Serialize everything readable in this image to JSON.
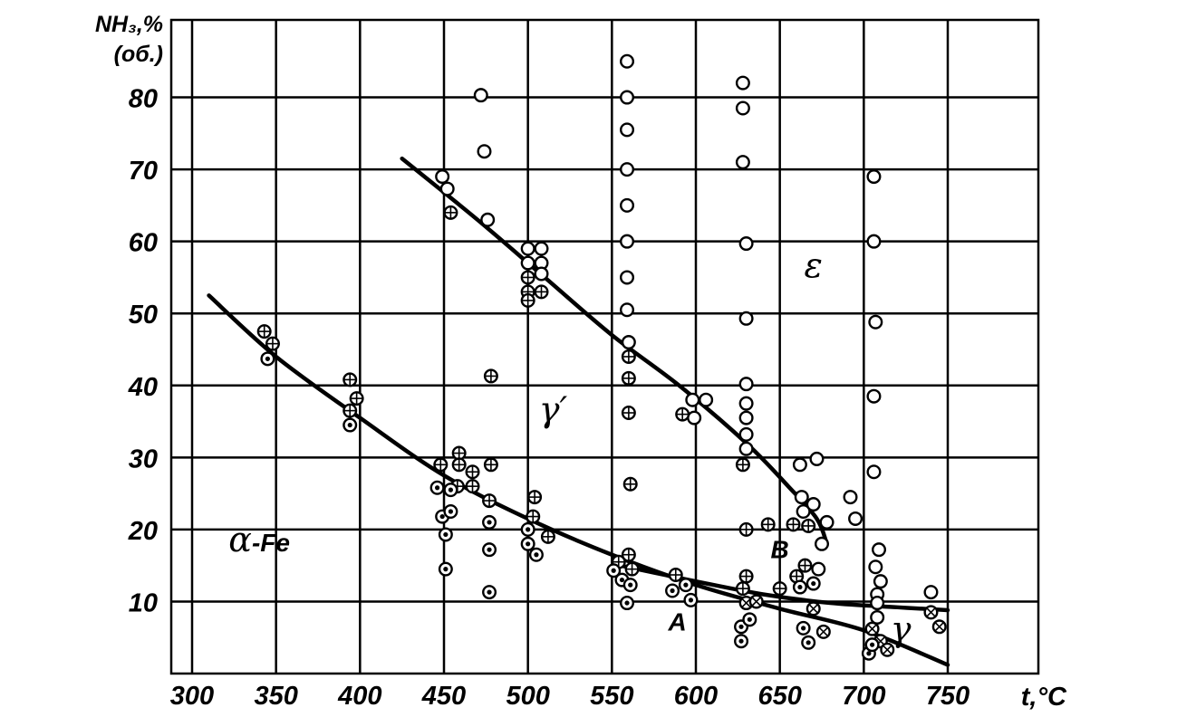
{
  "chart_data": {
    "type": "scatter",
    "title": "",
    "ylabel_lines": [
      "NH₃,%",
      "(об.)"
    ],
    "xlabel": "t,°C",
    "xlim": [
      300,
      750
    ],
    "ylim": [
      0,
      90
    ],
    "x_ticks": [
      300,
      350,
      400,
      450,
      500,
      550,
      600,
      650,
      700,
      750
    ],
    "x_tick_labels": [
      "300",
      "350",
      "400",
      "450",
      "500",
      "550",
      "600",
      "650",
      "700",
      "750"
    ],
    "y_ticks": [
      10,
      20,
      30,
      40,
      50,
      60,
      70,
      80
    ],
    "y_tick_labels": [
      "10",
      "20",
      "30",
      "40",
      "50",
      "60",
      "70",
      "80"
    ],
    "grid": true,
    "region_labels": [
      {
        "text": "α-Fe",
        "x": 340,
        "y": 17
      },
      {
        "text": "γ′",
        "x": 515,
        "y": 35
      },
      {
        "text": "ε",
        "x": 670,
        "y": 55
      },
      {
        "text": "γ",
        "x": 722,
        "y": 4.5
      },
      {
        "text": "A",
        "x": 589,
        "y": 6
      },
      {
        "text": "B",
        "x": 650,
        "y": 16
      }
    ],
    "curves": [
      {
        "points": [
          [
            310,
            52.5
          ],
          [
            350,
            44
          ],
          [
            400,
            35.5
          ],
          [
            450,
            27.5
          ],
          [
            500,
            21.5
          ],
          [
            550,
            16.5
          ],
          [
            600,
            12.3
          ],
          [
            650,
            9
          ],
          [
            700,
            6
          ],
          [
            750,
            1.2
          ]
        ]
      },
      {
        "points": [
          [
            425,
            71.5
          ],
          [
            470,
            63
          ],
          [
            510,
            55
          ],
          [
            550,
            47
          ],
          [
            590,
            40
          ],
          [
            630,
            32
          ],
          [
            655,
            26
          ],
          [
            672,
            21.5
          ],
          [
            678,
            18
          ]
        ]
      },
      {
        "points": [
          [
            555,
            15
          ],
          [
            600,
            12.8
          ],
          [
            640,
            11
          ],
          [
            680,
            9.8
          ],
          [
            720,
            9.2
          ],
          [
            750,
            8.8
          ]
        ]
      }
    ],
    "series": [
      {
        "marker": "open-circle",
        "points": [
          [
            472,
            80.3
          ],
          [
            474,
            72.5
          ],
          [
            476,
            63
          ],
          [
            449,
            69
          ],
          [
            452,
            67.3
          ],
          [
            500,
            59
          ],
          [
            500,
            57
          ],
          [
            508,
            59
          ],
          [
            508,
            57
          ],
          [
            508,
            55.5
          ],
          [
            559,
            85
          ],
          [
            559,
            80
          ],
          [
            559,
            75.5
          ],
          [
            559,
            70
          ],
          [
            559,
            65
          ],
          [
            559,
            60
          ],
          [
            559,
            55
          ],
          [
            559,
            50.5
          ],
          [
            560,
            46
          ],
          [
            598,
            38
          ],
          [
            599,
            35.5
          ],
          [
            606,
            38
          ],
          [
            628,
            82
          ],
          [
            628,
            78.5
          ],
          [
            628,
            71
          ],
          [
            630,
            59.7
          ],
          [
            630,
            49.3
          ],
          [
            630,
            40.2
          ],
          [
            630,
            37.5
          ],
          [
            630,
            35.5
          ],
          [
            630,
            33.2
          ],
          [
            630,
            31.2
          ],
          [
            662,
            29
          ],
          [
            663,
            24.5
          ],
          [
            664,
            22.5
          ],
          [
            670,
            23.5
          ],
          [
            672,
            29.8
          ],
          [
            673,
            14.5
          ],
          [
            675,
            18
          ],
          [
            678,
            21
          ],
          [
            692,
            24.5
          ],
          [
            695,
            21.5
          ],
          [
            706,
            69
          ],
          [
            706,
            60
          ],
          [
            707,
            48.8
          ],
          [
            706,
            38.5
          ],
          [
            706,
            28
          ],
          [
            709,
            17.2
          ],
          [
            707,
            14.8
          ],
          [
            710,
            12.8
          ],
          [
            708,
            11
          ],
          [
            708,
            9.8
          ],
          [
            708,
            7.8
          ],
          [
            740,
            11.3
          ]
        ]
      },
      {
        "marker": "crossed-circle",
        "points": [
          [
            343,
            47.5
          ],
          [
            348,
            45.8
          ],
          [
            394,
            40.8
          ],
          [
            394,
            36.5
          ],
          [
            398,
            38.2
          ],
          [
            448,
            29
          ],
          [
            459,
            30.6
          ],
          [
            459,
            29
          ],
          [
            458,
            26
          ],
          [
            467,
            28
          ],
          [
            467,
            26
          ],
          [
            478,
            29
          ],
          [
            477,
            24
          ],
          [
            454,
            64
          ],
          [
            478,
            41.3
          ],
          [
            500,
            55
          ],
          [
            500,
            53
          ],
          [
            500,
            51.8
          ],
          [
            508,
            53
          ],
          [
            504,
            24.5
          ],
          [
            503,
            21.8
          ],
          [
            512,
            19
          ],
          [
            554,
            15.5
          ],
          [
            560,
            16.5
          ],
          [
            562,
            14.5
          ],
          [
            560,
            44
          ],
          [
            560,
            41
          ],
          [
            560,
            36.2
          ],
          [
            561,
            26.3
          ],
          [
            588,
            13.7
          ],
          [
            592,
            36
          ],
          [
            628,
            29
          ],
          [
            630,
            20
          ],
          [
            630,
            13.5
          ],
          [
            628,
            11.8
          ],
          [
            643,
            20.7
          ],
          [
            650,
            11.8
          ],
          [
            660,
            13.5
          ],
          [
            658,
            20.7
          ],
          [
            665,
            15
          ],
          [
            667,
            20.5
          ]
        ]
      },
      {
        "marker": "x-circle",
        "points": [
          [
            630,
            9.8
          ],
          [
            636,
            10
          ],
          [
            670,
            9
          ],
          [
            676,
            5.8
          ],
          [
            705,
            6.2
          ],
          [
            710,
            4.5
          ],
          [
            714,
            3.3
          ],
          [
            740,
            8.5
          ],
          [
            745,
            6.5
          ]
        ]
      },
      {
        "marker": "dot-circle",
        "points": [
          [
            345,
            43.7
          ],
          [
            394,
            34.5
          ],
          [
            446,
            25.8
          ],
          [
            449,
            21.8
          ],
          [
            451,
            19.3
          ],
          [
            451,
            14.5
          ],
          [
            454,
            22.5
          ],
          [
            454,
            25.5
          ],
          [
            477,
            21
          ],
          [
            477,
            17.2
          ],
          [
            477,
            11.3
          ],
          [
            500,
            20
          ],
          [
            500,
            18
          ],
          [
            505,
            16.5
          ],
          [
            551,
            14.3
          ],
          [
            556,
            13
          ],
          [
            561,
            12.3
          ],
          [
            559,
            9.8
          ],
          [
            586,
            11.5
          ],
          [
            594,
            12.3
          ],
          [
            597,
            10.2
          ],
          [
            627,
            6.5
          ],
          [
            627,
            4.5
          ],
          [
            632,
            7.5
          ],
          [
            664,
            6.3
          ],
          [
            667,
            4.3
          ],
          [
            670,
            12.5
          ],
          [
            662,
            12
          ],
          [
            703,
            2.8
          ],
          [
            705,
            4
          ]
        ]
      }
    ]
  }
}
